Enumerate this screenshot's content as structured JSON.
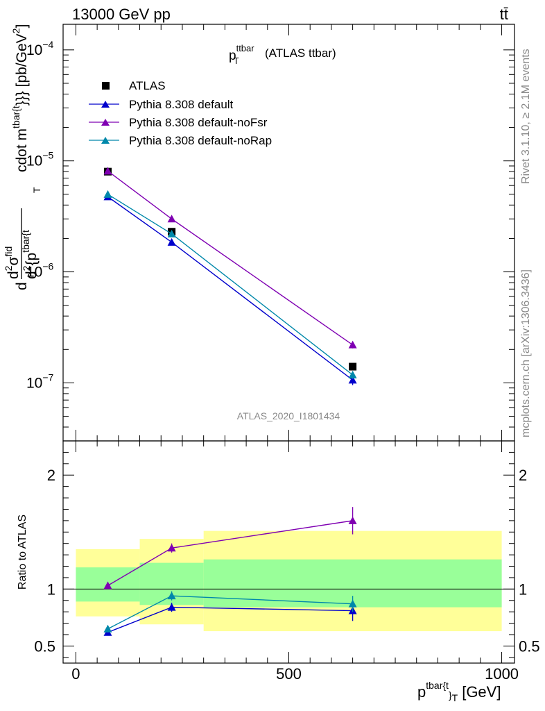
{
  "header": {
    "energy_label": "13000 GeV pp",
    "process_label": "tt̄"
  },
  "side_labels": {
    "rivet": "Rivet 3.1.10, ≥ 2.1M events",
    "mcplots": "mcplots.cern.ch [arXiv:1306.3436]"
  },
  "chart_data": [
    {
      "type": "scatter",
      "title_main": "p",
      "title_sup": "ttbar",
      "title_sub": "T",
      "title_rest": "(ATLAS ttbar)",
      "watermark": "ATLAS_2020_I1801434",
      "y_scale": "log",
      "xlim": [
        -30,
        1030
      ],
      "ylim": [
        3e-08,
        0.00017
      ],
      "ylabel_parts": {
        "d1": "d",
        "d2sig": "d",
        "sup2": "2",
        "sigma": "σ",
        "fid": "fid",
        "d2": "d",
        "sup2b": "2",
        "brace": "{p",
        "tbar_t": "tbar{t",
        "T": "T",
        "cdot": "cdot m",
        "tbar_t2": "tbar{t",
        "closing": "}}} [pb/GeV",
        "sq": "2",
        "end": "]"
      },
      "y_ticks": [
        {
          "value": 0.0001,
          "base": "10",
          "exp": "−4"
        },
        {
          "value": 1e-05,
          "base": "10",
          "exp": "−5"
        },
        {
          "value": 1e-06,
          "base": "10",
          "exp": "−6"
        },
        {
          "value": 1e-07,
          "base": "10",
          "exp": "−7"
        }
      ],
      "legend": {
        "position": "top-left",
        "entries": [
          "ATLAS",
          "Pythia 8.308 default",
          "Pythia 8.308 default-noFsr",
          "Pythia 8.308 default-noRap"
        ]
      },
      "series": [
        {
          "name": "ATLAS",
          "color": "#000000",
          "marker": "square",
          "x": [
            75,
            225,
            650
          ],
          "y": [
            8e-06,
            2.3e-06,
            1.4e-07
          ],
          "yerr_rel": [
            0.0,
            0.0,
            0.0
          ]
        },
        {
          "name": "Pythia 8.308 default",
          "color": "#0000cc",
          "marker": "triangle",
          "x": [
            75,
            225,
            650
          ],
          "y": [
            4.75e-06,
            1.85e-06,
            1.06e-07
          ],
          "yerr_rel": [
            0.02,
            0.06,
            0.1
          ]
        },
        {
          "name": "Pythia 8.308 default-noFsr",
          "color": "#7f00b2",
          "marker": "triangle",
          "x": [
            75,
            225,
            650
          ],
          "y": [
            8.1e-06,
            3e-06,
            2.2e-07
          ],
          "yerr_rel": [
            0.02,
            0.03,
            0.07
          ]
        },
        {
          "name": "Pythia 8.308 default-noRap",
          "color": "#0088aa",
          "marker": "triangle",
          "x": [
            75,
            225,
            650
          ],
          "y": [
            5e-06,
            2.2e-06,
            1.18e-07
          ],
          "yerr_rel": [
            0.03,
            0.04,
            0.08
          ]
        }
      ]
    },
    {
      "type": "scatter",
      "ylabel": "Ratio to ATLAS",
      "xlabel_main": "p",
      "xlabel_sup": "tbar{t",
      "xlabel_sub": "}",
      "xlabel_subT": "T",
      "xlabel_unit": "[GeV]",
      "xlim": [
        -30,
        1030
      ],
      "ylim": [
        0.35,
        2.3
      ],
      "x_ticks": [
        0,
        500,
        1000
      ],
      "x_tick_labels": [
        "0",
        "500",
        "1000"
      ],
      "y_ticks": [
        0.5,
        1,
        2
      ],
      "y_tick_labels": [
        "0.5",
        "1",
        "2"
      ],
      "bands": [
        {
          "x_low": 0,
          "x_high": 150,
          "green": [
            0.89,
            1.19
          ],
          "yellow": [
            0.76,
            1.35
          ]
        },
        {
          "x_low": 150,
          "x_high": 300,
          "green": [
            0.86,
            1.23
          ],
          "yellow": [
            0.69,
            1.44
          ]
        },
        {
          "x_low": 300,
          "x_high": 1000,
          "green": [
            0.84,
            1.26
          ],
          "yellow": [
            0.63,
            1.51
          ]
        }
      ],
      "series": [
        {
          "name": "Pythia 8.308 default",
          "color": "#0000cc",
          "x": [
            75,
            225,
            650
          ],
          "y": [
            0.62,
            0.84,
            0.81
          ],
          "yerr": [
            0.02,
            0.04,
            0.09
          ]
        },
        {
          "name": "Pythia 8.308 default-noFsr",
          "color": "#7f00b2",
          "x": [
            75,
            225,
            650
          ],
          "y": [
            1.03,
            1.36,
            1.6
          ],
          "yerr": [
            0.02,
            0.04,
            0.12
          ]
        },
        {
          "name": "Pythia 8.308 default-noRap",
          "color": "#0088aa",
          "x": [
            75,
            225,
            650
          ],
          "y": [
            0.65,
            0.94,
            0.87
          ],
          "yerr": [
            0.03,
            0.04,
            0.07
          ]
        }
      ]
    }
  ]
}
